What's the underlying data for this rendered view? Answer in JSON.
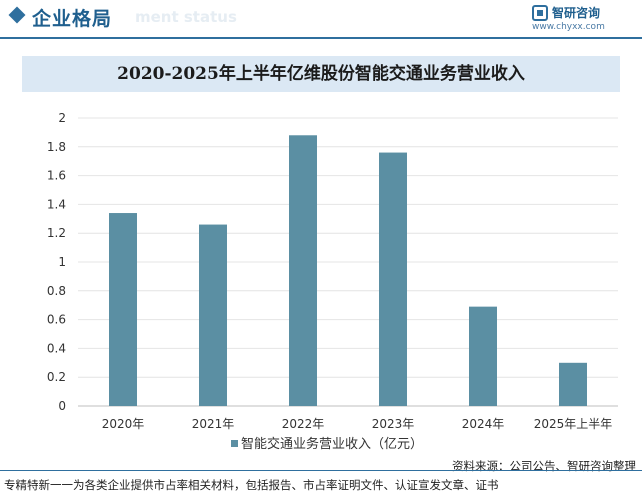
{
  "header": {
    "section_title": "企业格局",
    "section_subtitle": "ment status",
    "brand_name": "智研咨询",
    "brand_url": "www.chyxx.com"
  },
  "chart_data": {
    "type": "bar",
    "title": "2020-2025年上半年亿维股份智能交通业务营业收入",
    "categories": [
      "2020年",
      "2021年",
      "2022年",
      "2023年",
      "2024年",
      "2025年上半年"
    ],
    "series": [
      {
        "name": "智能交通业务营业收入（亿元）",
        "values": [
          1.34,
          1.26,
          1.88,
          1.76,
          0.69,
          0.3
        ],
        "color": "#5b8fa3"
      }
    ],
    "ylim": [
      0,
      2
    ],
    "yticks": [
      "0",
      "0.2",
      "0.4",
      "0.6",
      "0.8",
      "1",
      "1.2",
      "1.4",
      "1.6",
      "1.8",
      "2"
    ],
    "grid": true,
    "legend_position": "bottom"
  },
  "footer": {
    "source": "资料来源：公司公告、智研咨询整理",
    "tagline": "专精特新一一为各类企业提供市占率相关材料，包括报告、市占率证明文件、认证宣发文章、证书"
  }
}
